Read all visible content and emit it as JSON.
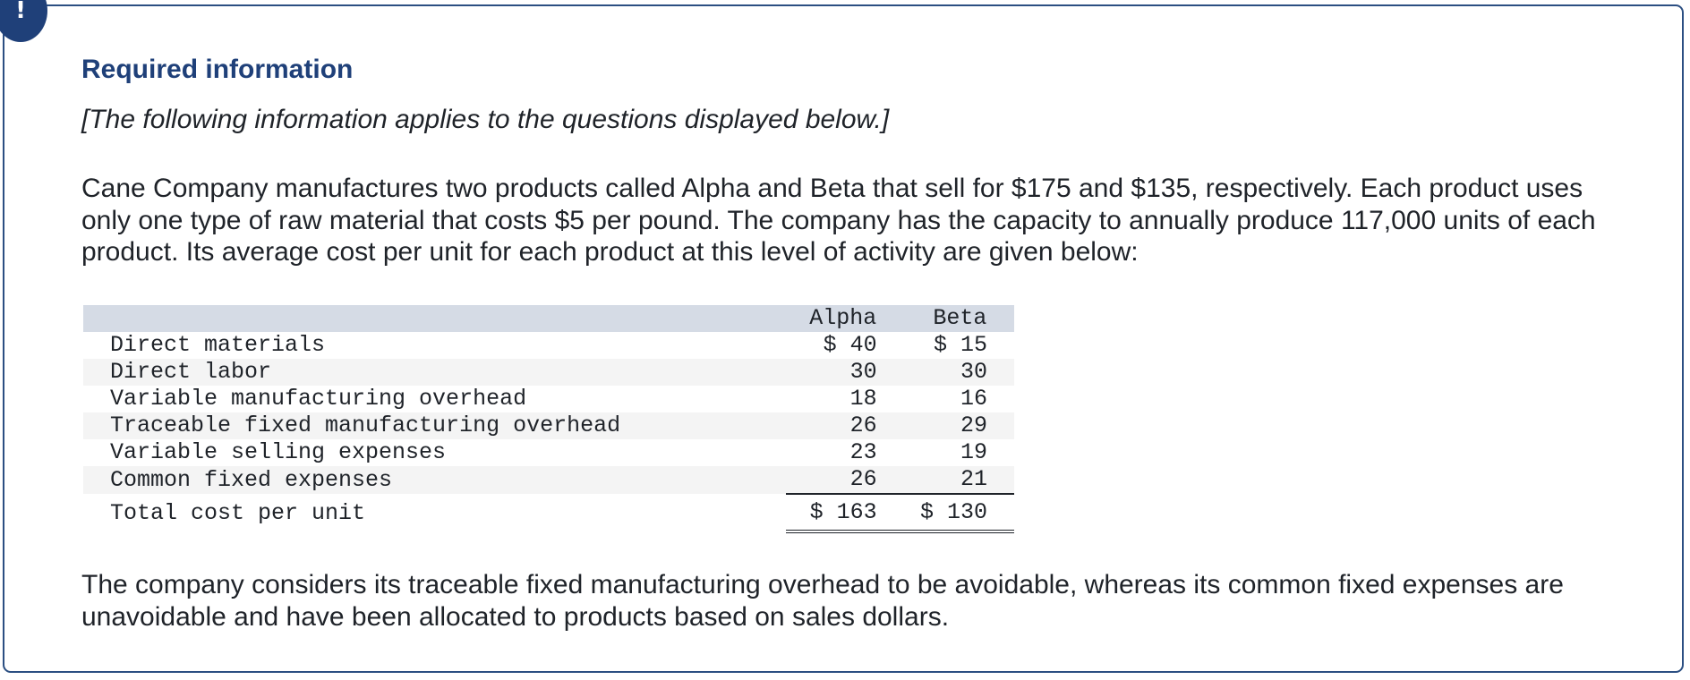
{
  "alert": {
    "icon": "exclamation-icon",
    "symbol": "!",
    "color": "#1f4079"
  },
  "heading": "Required information",
  "note": "[The following information applies to the questions displayed below.]",
  "intro": "Cane Company manufactures two products called Alpha and Beta that sell for $175 and $135, respectively. Each product uses only one type of raw material that costs $5 per pound. The company has the capacity to annually produce 117,000 units of each product. Its average cost per unit for each product at this level of activity are given below:",
  "table": {
    "columns": [
      "",
      "Alpha",
      "Beta"
    ],
    "rows": [
      {
        "label": "Direct materials",
        "alpha": "$ 40",
        "beta": "$ 15"
      },
      {
        "label": "Direct labor",
        "alpha": "30",
        "beta": "30"
      },
      {
        "label": "Variable manufacturing overhead",
        "alpha": "18",
        "beta": "16"
      },
      {
        "label": "Traceable fixed manufacturing overhead",
        "alpha": "26",
        "beta": "29"
      },
      {
        "label": "Variable selling expenses",
        "alpha": "23",
        "beta": "19"
      },
      {
        "label": "Common fixed expenses",
        "alpha": "26",
        "beta": "21"
      }
    ],
    "total": {
      "label": "Total cost per unit",
      "alpha": "$ 163",
      "beta": "$ 130"
    }
  },
  "closing": "The company considers its traceable fixed manufacturing overhead to be avoidable, whereas its common fixed expenses are unavoidable and have been allocated to products based on sales dollars."
}
